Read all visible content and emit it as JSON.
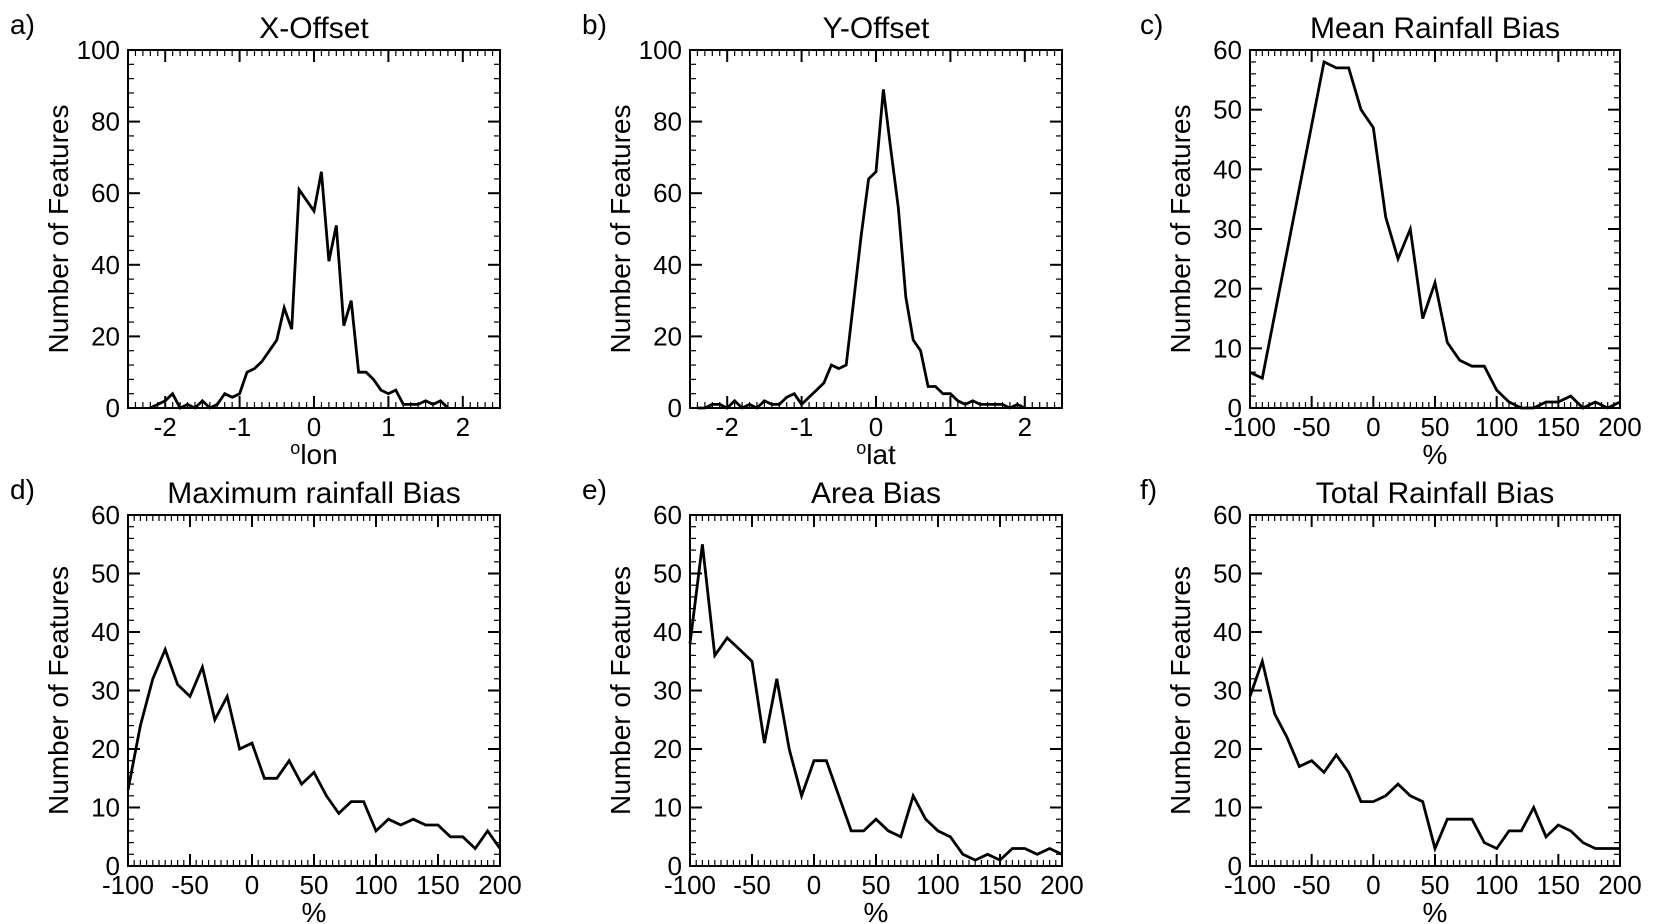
{
  "figure": {
    "ylabel": "Number of Features",
    "line_color": "#000000"
  },
  "chart_data": [
    {
      "type": "line",
      "panel_label": "a)",
      "title": "X-Offset",
      "xlabel_sup": "o",
      "xlabel": "lon",
      "ylabel": "Number of Features",
      "xlim": [
        -2.5,
        2.5
      ],
      "ylim": [
        0,
        100
      ],
      "xticks": [
        -2,
        -1,
        0,
        1,
        2
      ],
      "yticks": [
        0,
        20,
        40,
        60,
        80,
        100
      ],
      "x": [
        -2.2,
        -2.1,
        -2.0,
        -1.9,
        -1.8,
        -1.7,
        -1.6,
        -1.5,
        -1.4,
        -1.3,
        -1.2,
        -1.1,
        -1.0,
        -0.9,
        -0.8,
        -0.7,
        -0.6,
        -0.5,
        -0.4,
        -0.3,
        -0.2,
        -0.1,
        0.0,
        0.1,
        0.2,
        0.3,
        0.4,
        0.5,
        0.6,
        0.7,
        0.8,
        0.9,
        1.0,
        1.1,
        1.2,
        1.3,
        1.4,
        1.5,
        1.6,
        1.7,
        1.8
      ],
      "y": [
        0,
        1,
        2,
        4,
        0,
        1,
        0,
        2,
        0,
        1,
        4,
        3,
        4,
        10,
        11,
        13,
        16,
        19,
        28,
        22,
        61,
        58,
        55,
        66,
        41,
        51,
        23,
        30,
        10,
        10,
        8,
        5,
        4,
        5,
        1,
        1,
        1,
        2,
        1,
        2,
        0
      ]
    },
    {
      "type": "line",
      "panel_label": "b)",
      "title": "Y-Offset",
      "xlabel_sup": "o",
      "xlabel": "lat",
      "ylabel": "Number of Features",
      "xlim": [
        -2.5,
        2.5
      ],
      "ylim": [
        0,
        100
      ],
      "xticks": [
        -2,
        -1,
        0,
        1,
        2
      ],
      "yticks": [
        0,
        20,
        40,
        60,
        80,
        100
      ],
      "x": [
        -2.4,
        -2.3,
        -2.2,
        -2.1,
        -2.0,
        -1.9,
        -1.8,
        -1.7,
        -1.6,
        -1.5,
        -1.4,
        -1.3,
        -1.2,
        -1.1,
        -1.0,
        -0.9,
        -0.8,
        -0.7,
        -0.6,
        -0.5,
        -0.4,
        -0.3,
        -0.2,
        -0.1,
        0.0,
        0.1,
        0.2,
        0.3,
        0.4,
        0.5,
        0.6,
        0.7,
        0.8,
        0.9,
        1.0,
        1.1,
        1.2,
        1.3,
        1.4,
        1.5,
        1.6,
        1.7,
        1.8,
        1.9,
        2.0
      ],
      "y": [
        0,
        0,
        1,
        1,
        0,
        2,
        0,
        1,
        0,
        2,
        1,
        1,
        3,
        4,
        1,
        3,
        5,
        7,
        12,
        11,
        12,
        30,
        48,
        64,
        66,
        89,
        72,
        56,
        31,
        19,
        16,
        6,
        6,
        4,
        4,
        2,
        1,
        2,
        1,
        1,
        1,
        1,
        0,
        1,
        0
      ]
    },
    {
      "type": "line",
      "panel_label": "c)",
      "title": "Mean Rainfall Bias",
      "xlabel": "%",
      "ylabel": "Number of Features",
      "xlim": [
        -100,
        200
      ],
      "ylim": [
        0,
        60
      ],
      "xticks": [
        -100,
        -50,
        0,
        50,
        100,
        150,
        200
      ],
      "yticks": [
        0,
        10,
        20,
        30,
        40,
        50,
        60
      ],
      "x": [
        -100,
        -90,
        -40,
        -30,
        -20,
        -10,
        0,
        10,
        20,
        30,
        40,
        50,
        60,
        70,
        80,
        90,
        100,
        110,
        120,
        130,
        140,
        150,
        160,
        170,
        180,
        190,
        200
      ],
      "y": [
        6,
        5,
        58,
        57,
        57,
        50,
        47,
        32,
        25,
        30,
        15,
        21,
        11,
        8,
        7,
        7,
        3,
        1,
        0,
        0,
        1,
        1,
        2,
        0,
        1,
        0,
        1
      ]
    },
    {
      "type": "line",
      "panel_label": "d)",
      "title": "Maximum rainfall Bias",
      "xlabel": "%",
      "ylabel": "Number of Features",
      "xlim": [
        -100,
        200
      ],
      "ylim": [
        0,
        60
      ],
      "xticks": [
        -100,
        -50,
        0,
        50,
        100,
        150,
        200
      ],
      "yticks": [
        0,
        10,
        20,
        30,
        40,
        50,
        60
      ],
      "x": [
        -100,
        -90,
        -80,
        -70,
        -60,
        -50,
        -40,
        -30,
        -20,
        -10,
        0,
        10,
        20,
        30,
        40,
        50,
        60,
        70,
        80,
        90,
        100,
        110,
        120,
        130,
        140,
        150,
        160,
        170,
        180,
        190,
        200
      ],
      "y": [
        13,
        24,
        32,
        37,
        31,
        29,
        34,
        25,
        29,
        20,
        21,
        15,
        15,
        18,
        14,
        16,
        12,
        9,
        11,
        11,
        6,
        8,
        7,
        8,
        7,
        7,
        5,
        5,
        3,
        6,
        3
      ]
    },
    {
      "type": "line",
      "panel_label": "e)",
      "title": "Area Bias",
      "xlabel": "%",
      "ylabel": "Number of Features",
      "xlim": [
        -100,
        200
      ],
      "ylim": [
        0,
        60
      ],
      "xticks": [
        -100,
        -50,
        0,
        50,
        100,
        150,
        200
      ],
      "yticks": [
        0,
        10,
        20,
        30,
        40,
        50,
        60
      ],
      "x": [
        -100,
        -90,
        -80,
        -70,
        -60,
        -50,
        -40,
        -30,
        -20,
        -10,
        0,
        10,
        20,
        30,
        40,
        50,
        60,
        70,
        80,
        90,
        100,
        110,
        120,
        130,
        140,
        150,
        160,
        170,
        180,
        190,
        200
      ],
      "y": [
        38,
        55,
        36,
        39,
        37,
        35,
        21,
        32,
        20,
        12,
        18,
        18,
        12,
        6,
        6,
        8,
        6,
        5,
        12,
        8,
        6,
        5,
        2,
        1,
        2,
        1,
        3,
        3,
        2,
        3,
        2
      ]
    },
    {
      "type": "line",
      "panel_label": "f)",
      "title": "Total Rainfall Bias",
      "xlabel": "%",
      "ylabel": "Number of Features",
      "xlim": [
        -100,
        200
      ],
      "ylim": [
        0,
        60
      ],
      "xticks": [
        -100,
        -50,
        0,
        50,
        100,
        150,
        200
      ],
      "yticks": [
        0,
        10,
        20,
        30,
        40,
        50,
        60
      ],
      "x": [
        -100,
        -90,
        -80,
        -70,
        -60,
        -50,
        -40,
        -30,
        -20,
        -10,
        0,
        10,
        20,
        30,
        40,
        50,
        60,
        70,
        80,
        90,
        100,
        110,
        120,
        130,
        140,
        150,
        160,
        170,
        180,
        190,
        200
      ],
      "y": [
        29,
        35,
        26,
        22,
        17,
        18,
        16,
        19,
        16,
        11,
        11,
        12,
        14,
        12,
        11,
        3,
        8,
        8,
        8,
        4,
        3,
        6,
        6,
        10,
        5,
        7,
        6,
        4,
        3,
        3,
        3
      ]
    }
  ]
}
